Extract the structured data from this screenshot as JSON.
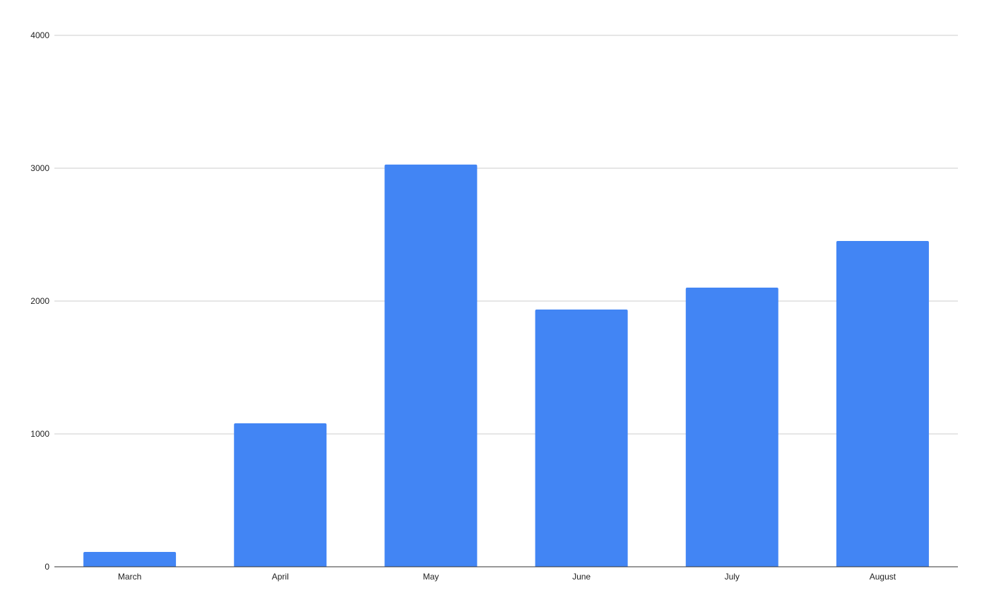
{
  "chart_data": {
    "type": "bar",
    "title": "",
    "xlabel": "",
    "ylabel": "",
    "categories": [
      "March",
      "April",
      "May",
      "June",
      "July",
      "August"
    ],
    "values": [
      112,
      1080,
      3027,
      1936,
      2101,
      2452
    ],
    "ylim": [
      0,
      4000
    ],
    "yticks": [
      "0",
      "1000",
      "2000",
      "3000",
      "4000"
    ],
    "grid": true,
    "legend": "none",
    "bar_color": "#4285f4"
  }
}
